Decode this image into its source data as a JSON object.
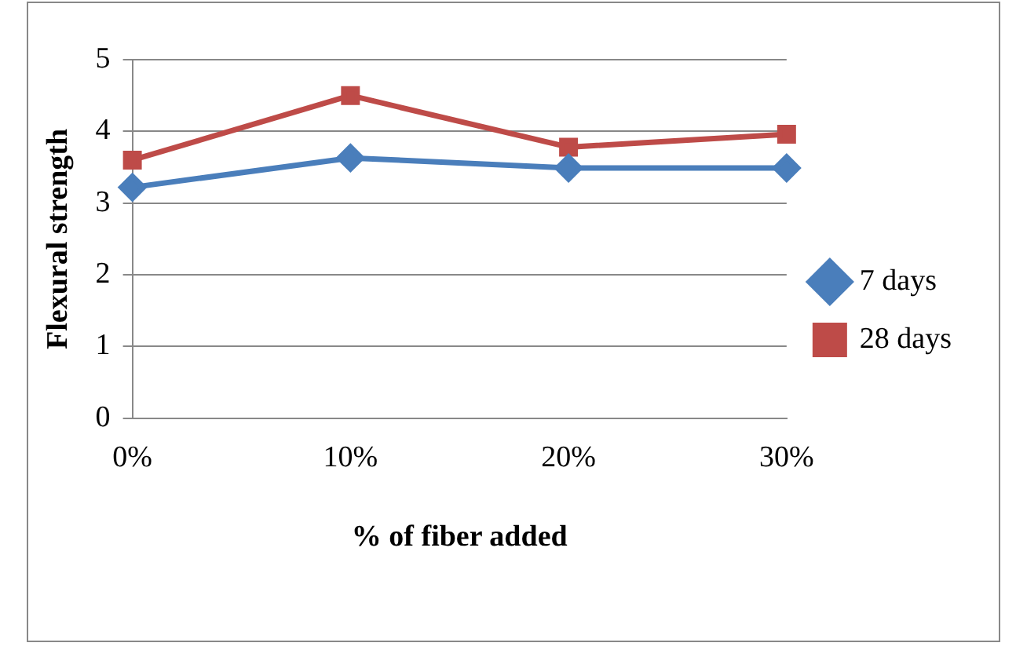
{
  "chart_data": {
    "type": "line",
    "xlabel": "% of fiber added",
    "ylabel": "Flexural strength",
    "categories": [
      "0%",
      "10%",
      "20%",
      "30%"
    ],
    "series": [
      {
        "name": "7 days",
        "color": "#4a7ebb",
        "marker": "diamond",
        "values": [
          3.22,
          3.63,
          3.49,
          3.49
        ]
      },
      {
        "name": "28 days",
        "color": "#be4b48",
        "marker": "square",
        "values": [
          3.6,
          4.5,
          3.78,
          3.96
        ]
      }
    ],
    "ylim": [
      0,
      5
    ],
    "yticks": [
      0,
      1,
      2,
      3,
      4,
      5
    ],
    "grid": "y",
    "legend": "right"
  }
}
